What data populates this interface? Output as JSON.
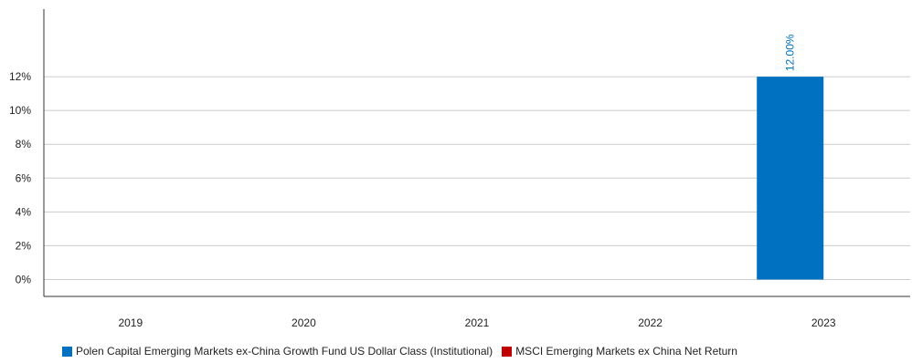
{
  "chart_data": {
    "type": "bar",
    "categories": [
      "2019",
      "2020",
      "2021",
      "2022",
      "2023"
    ],
    "series": [
      {
        "name": "Polen Capital Emerging Markets ex-China Growth Fund US Dollar Class (Institutional)",
        "color": "#0070C0",
        "values": [
          null,
          null,
          null,
          null,
          12.0
        ],
        "data_labels": [
          "",
          "",
          "",
          "",
          "12.00%"
        ]
      },
      {
        "name": "MSCI Emerging Markets ex China Net Return",
        "color": "#C00000",
        "values": [
          null,
          null,
          null,
          null,
          null
        ],
        "data_labels": [
          "",
          "",
          "",
          "",
          ""
        ]
      }
    ],
    "ylim": [
      -1,
      16
    ],
    "yticks": [
      0,
      2,
      4,
      6,
      8,
      10,
      12
    ],
    "ytick_labels": [
      "0%",
      "2%",
      "4%",
      "6%",
      "8%",
      "10%",
      "12%"
    ],
    "grid": true,
    "legend_position": "bottom",
    "title": "",
    "xlabel": "",
    "ylabel": ""
  }
}
